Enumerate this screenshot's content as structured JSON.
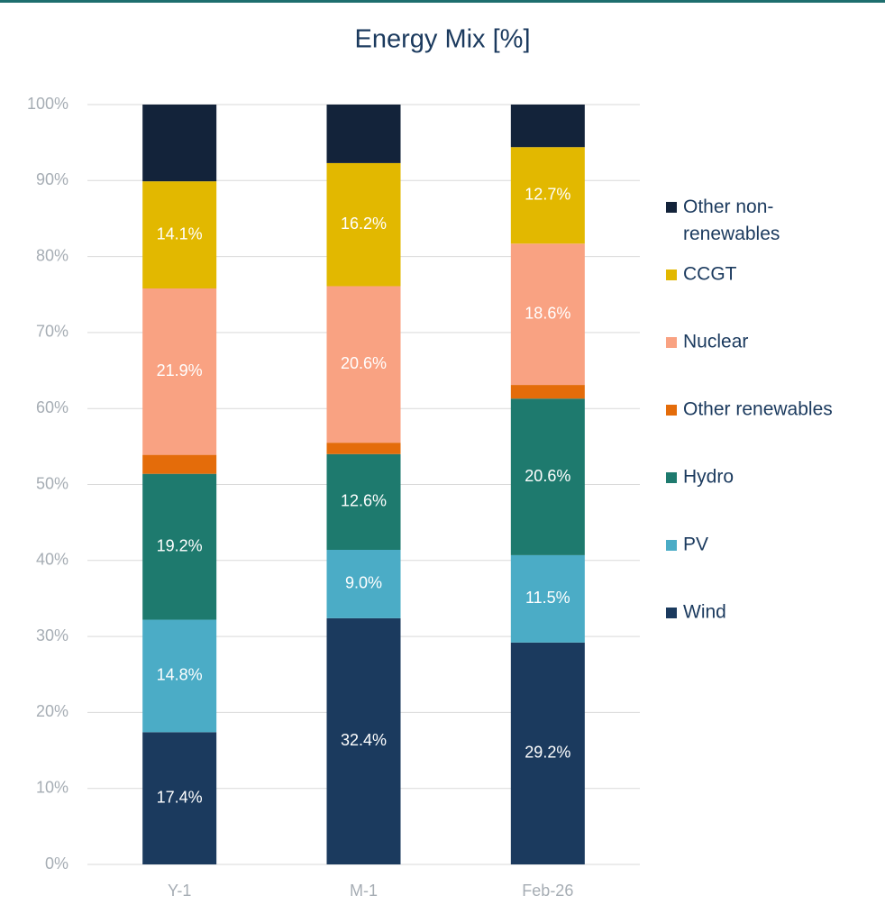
{
  "chart_data": {
    "type": "stacked_bar",
    "title": "Energy Mix [%]",
    "categories": [
      "Y-1",
      "M-1",
      "Feb-26"
    ],
    "series": [
      {
        "name": "Wind",
        "color": "#1b3a5e",
        "values": [
          17.4,
          32.4,
          29.2
        ],
        "value_labels": [
          "17.4%",
          "32.4%",
          "29.2%"
        ]
      },
      {
        "name": "PV",
        "color": "#4bacc6",
        "values": [
          14.8,
          9.0,
          11.5
        ],
        "value_labels": [
          "14.8%",
          "9.0%",
          "11.5%"
        ]
      },
      {
        "name": "Hydro",
        "color": "#1e7a6e",
        "values": [
          19.2,
          12.6,
          20.6
        ],
        "value_labels": [
          "19.2%",
          "12.6%",
          "20.6%"
        ]
      },
      {
        "name": "Other renewables",
        "color": "#e46c0a",
        "values": [
          2.5,
          1.5,
          1.8
        ],
        "value_labels": [
          null,
          null,
          null
        ]
      },
      {
        "name": "Nuclear",
        "color": "#f9a282",
        "values": [
          21.9,
          20.6,
          18.6
        ],
        "value_labels": [
          "21.9%",
          "20.6%",
          "18.6%"
        ]
      },
      {
        "name": "CCGT",
        "color": "#e2b800",
        "values": [
          14.1,
          16.2,
          12.7
        ],
        "value_labels": [
          "14.1%",
          "16.2%",
          "12.7%"
        ]
      },
      {
        "name": "Other non-renewables",
        "color": "#13233a",
        "values": [
          10.1,
          7.7,
          5.6
        ],
        "value_labels": [
          null,
          null,
          null
        ]
      }
    ],
    "ylim": [
      0,
      100
    ],
    "yticks": [
      {
        "value": 0,
        "label": "0%"
      },
      {
        "value": 10,
        "label": "10%"
      },
      {
        "value": 20,
        "label": "20%"
      },
      {
        "value": 30,
        "label": "30%"
      },
      {
        "value": 40,
        "label": "40%"
      },
      {
        "value": 50,
        "label": "50%"
      },
      {
        "value": 60,
        "label": "60%"
      },
      {
        "value": 70,
        "label": "70%"
      },
      {
        "value": 80,
        "label": "80%"
      },
      {
        "value": 90,
        "label": "90%"
      },
      {
        "value": 100,
        "label": "100%"
      }
    ],
    "grid": true,
    "legend": "right"
  }
}
